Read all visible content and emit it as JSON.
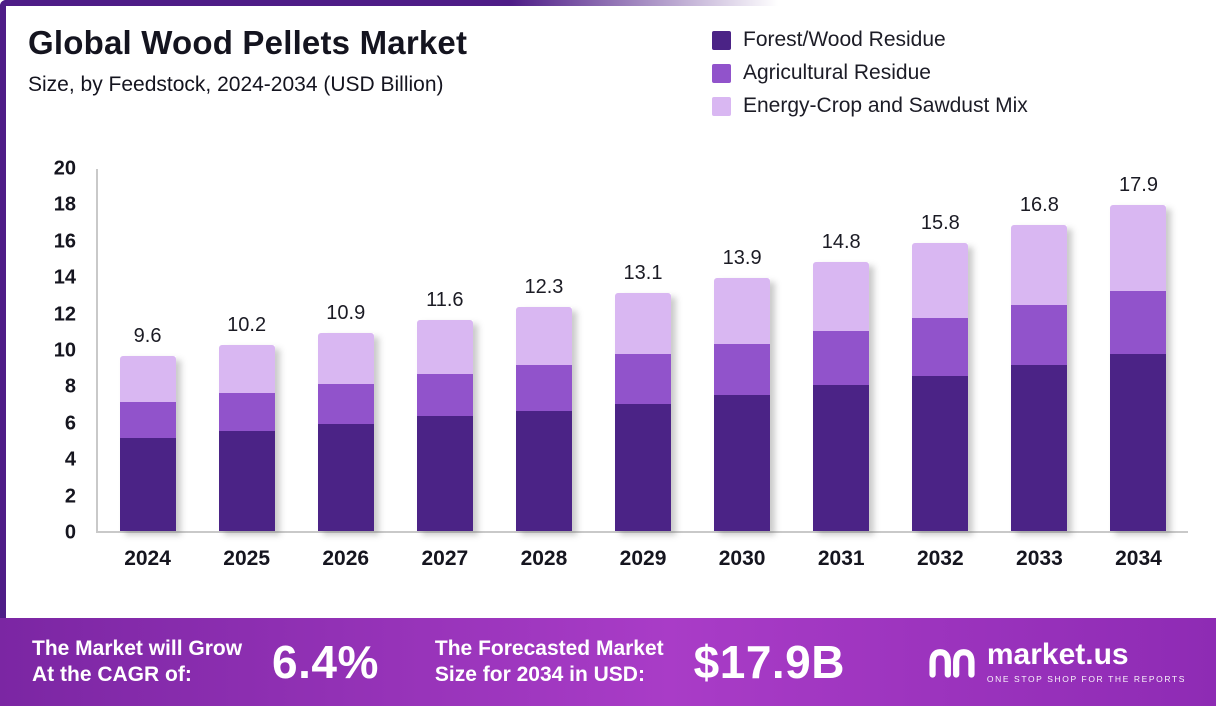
{
  "header": {
    "title": "Global Wood Pellets Market",
    "subtitle": "Size, by Feedstock, 2024-2034 (USD Billion)"
  },
  "chart_data": {
    "type": "bar",
    "stacked": true,
    "title": "Global Wood Pellets Market",
    "subtitle": "Size, by Feedstock, 2024-2034 (USD Billion)",
    "value_unit": "USD Billion",
    "categories": [
      "2024",
      "2025",
      "2026",
      "2027",
      "2028",
      "2029",
      "2030",
      "2031",
      "2032",
      "2033",
      "2034"
    ],
    "series": [
      {
        "name": "Forest/Wood Residue",
        "color": "#4B2386",
        "values": [
          5.1,
          5.5,
          5.9,
          6.3,
          6.6,
          7.0,
          7.5,
          8.0,
          8.5,
          9.1,
          9.7
        ]
      },
      {
        "name": "Agricultural Residue",
        "color": "#9153CB",
        "values": [
          2.0,
          2.1,
          2.2,
          2.3,
          2.5,
          2.7,
          2.8,
          3.0,
          3.2,
          3.3,
          3.5
        ]
      },
      {
        "name": "Energy-Crop and Sawdust Mix",
        "color": "#D9B7F2",
        "values": [
          2.5,
          2.6,
          2.8,
          3.0,
          3.2,
          3.4,
          3.6,
          3.8,
          4.1,
          4.4,
          4.7
        ]
      }
    ],
    "totals": [
      9.6,
      10.2,
      10.9,
      11.6,
      12.3,
      13.1,
      13.9,
      14.8,
      15.8,
      16.8,
      17.9
    ],
    "ylim": [
      0,
      20
    ],
    "ytick_step": 2,
    "legend_position": "top-right",
    "grid": false
  },
  "footer": {
    "cagr_label_line1": "The Market will Grow",
    "cagr_label_line2": "At the CAGR of:",
    "cagr_value": "6.4%",
    "forecast_label_line1": "The Forecasted Market",
    "forecast_label_line2": "Size for 2034 in USD:",
    "forecast_value": "$17.9B",
    "brand_name": "market.us",
    "brand_tagline": "ONE STOP SHOP FOR THE REPORTS"
  },
  "theme": {
    "accent": "#4E1D87",
    "axis_color": "#C9C9C9",
    "text_color": "#15151F",
    "footer_gradient": [
      "#7B26A3",
      "#A93CC7",
      "#8E2BB4"
    ]
  }
}
